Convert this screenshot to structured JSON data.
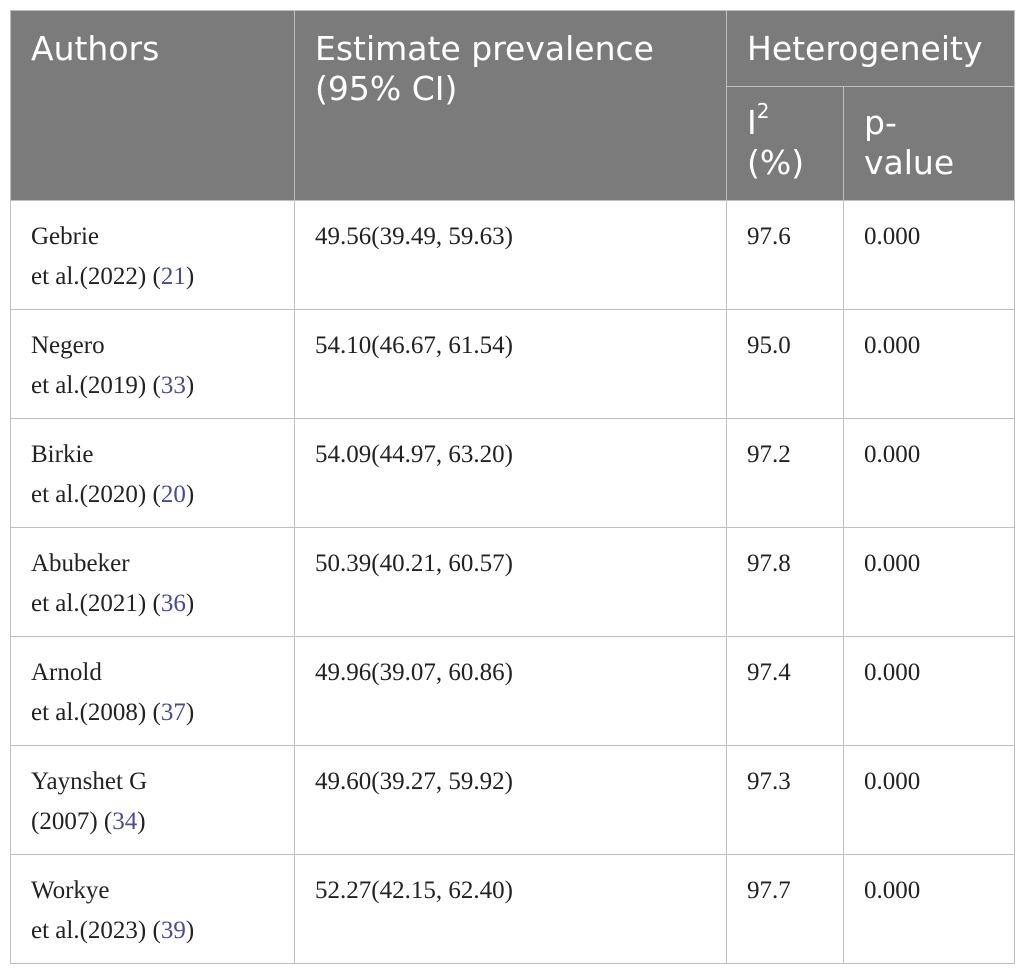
{
  "header": {
    "authors": "Authors",
    "estimate_line1": "Estimate prevalence",
    "estimate_line2": "(95% CI)",
    "heterogeneity": "Heterogeneity",
    "i2_base": "I",
    "i2_sup": "2",
    "i2_unit": "(%)",
    "pvalue_line1": "p-",
    "pvalue_line2": "value"
  },
  "rows": [
    {
      "author_line1": "Gebrie",
      "author_line2": "et al.(2022)",
      "ref": "21",
      "estimate": "49.56(39.49, 59.63)",
      "i2": "97.6",
      "p": "0.000"
    },
    {
      "author_line1": "Negero",
      "author_line2": "et al.(2019)",
      "ref": "33",
      "estimate": "54.10(46.67, 61.54)",
      "i2": "95.0",
      "p": "0.000"
    },
    {
      "author_line1": "Birkie",
      "author_line2": "et al.(2020)",
      "ref": "20",
      "estimate": "54.09(44.97, 63.20)",
      "i2": "97.2",
      "p": "0.000"
    },
    {
      "author_line1": "Abubeker",
      "author_line2": "et al.(2021)",
      "ref": "36",
      "estimate": "50.39(40.21, 60.57)",
      "i2": "97.8",
      "p": "0.000"
    },
    {
      "author_line1": "Arnold",
      "author_line2": "et al.(2008)",
      "ref": "37",
      "estimate": "49.96(39.07, 60.86)",
      "i2": "97.4",
      "p": "0.000"
    },
    {
      "author_line1": "Yaynshet G",
      "author_line2": "(2007)",
      "ref": "34",
      "estimate": "49.60(39.27, 59.92)",
      "i2": "97.3",
      "p": "0.000"
    },
    {
      "author_line1": "Workye",
      "author_line2": "et al.(2023)",
      "ref": "39",
      "estimate": "52.27(42.15, 62.40)",
      "i2": "97.7",
      "p": "0.000"
    }
  ]
}
